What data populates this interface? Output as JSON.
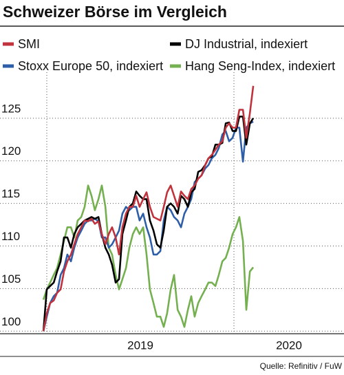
{
  "chart_data": {
    "type": "line",
    "title": "Schweizer Börse im Vergleich",
    "source": "Quelle: Refinitiv / FuW",
    "x": [
      2018.982,
      2019.0,
      2019.018,
      2019.037,
      2019.055,
      2019.074,
      2019.092,
      2019.11,
      2019.129,
      2019.147,
      2019.165,
      2019.184,
      2019.202,
      2019.221,
      2019.239,
      2019.257,
      2019.276,
      2019.294,
      2019.313,
      2019.331,
      2019.349,
      2019.368,
      2019.386,
      2019.404,
      2019.423,
      2019.441,
      2019.46,
      2019.478,
      2019.496,
      2019.515,
      2019.533,
      2019.551,
      2019.57,
      2019.588,
      2019.607,
      2019.625,
      2019.643,
      2019.662,
      2019.68,
      2019.699,
      2019.717,
      2019.735,
      2019.754,
      2019.772,
      2019.79,
      2019.809,
      2019.827,
      2019.846,
      2019.864,
      2019.882,
      2019.901,
      2019.919,
      2019.938,
      2019.956,
      2019.974,
      2019.993,
      2020.011,
      2020.029,
      2020.048,
      2020.066,
      2020.085,
      2020.103
    ],
    "series": [
      {
        "name": "Hang Seng-Index, indexiert",
        "color": "#74b04f",
        "values": [
          103.7,
          104.9,
          105.7,
          106.6,
          107.4,
          109.0,
          110.6,
          112.2,
          112.2,
          111.0,
          113.0,
          113.4,
          114.6,
          117.1,
          115.9,
          114.2,
          115.5,
          117.1,
          114.6,
          109.8,
          109.0,
          106.6,
          104.9,
          106.1,
          107.4,
          109.8,
          111.4,
          112.2,
          111.4,
          112.2,
          109.0,
          104.9,
          103.3,
          101.7,
          101.7,
          100.5,
          102.1,
          104.9,
          106.6,
          102.5,
          101.7,
          100.5,
          102.5,
          104.1,
          101.7,
          103.3,
          104.1,
          104.9,
          105.7,
          105.7,
          105.3,
          106.6,
          108.2,
          108.6,
          109.8,
          111.4,
          112.2,
          113.4,
          110.6,
          102.5,
          107.0,
          107.5
        ]
      },
      {
        "name": "Stoxx Europe 50, indexiert",
        "color": "#2f5ea8",
        "values": [
          100,
          101.7,
          103.3,
          104.1,
          104.5,
          106.6,
          107.4,
          109.0,
          108.2,
          109.8,
          111.0,
          111.8,
          112.6,
          113.0,
          113.0,
          113.2,
          112.9,
          111.0,
          111.0,
          109.8,
          110.2,
          111.0,
          111.8,
          113.8,
          114.6,
          114.2,
          114.6,
          114.6,
          113.0,
          113.8,
          112.2,
          111.0,
          109.0,
          109.0,
          109.4,
          113.0,
          114.6,
          114.2,
          113.4,
          113.0,
          112.2,
          113.8,
          114.6,
          115.5,
          117.5,
          117.9,
          118.3,
          119.1,
          119.5,
          120.3,
          120.7,
          121.5,
          123.1,
          123.5,
          122.3,
          122.7,
          123.9,
          123.9,
          119.9,
          123.9,
          124.4,
          124.6
        ]
      },
      {
        "name": "DJ Industrial, indexiert",
        "color": "#000000",
        "values": [
          100,
          104.9,
          105.3,
          105.7,
          107.0,
          108.2,
          111.0,
          111.0,
          109.8,
          111.4,
          112.2,
          112.6,
          113.0,
          113.2,
          113.4,
          113.2,
          113.4,
          111.4,
          109.8,
          109.0,
          107.8,
          105.7,
          106.1,
          111.4,
          113.0,
          114.6,
          115.0,
          116.4,
          115.9,
          115.5,
          115.5,
          113.0,
          111.8,
          110.2,
          109.8,
          111.8,
          114.6,
          115.0,
          114.6,
          113.8,
          115.9,
          115.5,
          114.6,
          116.3,
          116.7,
          118.7,
          118.9,
          119.5,
          120.3,
          120.5,
          121.9,
          121.9,
          122.1,
          124.4,
          124.5,
          123.5,
          123.5,
          125.2,
          125.2,
          121.9,
          124.4,
          125.0
        ]
      },
      {
        "name": "SMI",
        "color": "#c0323c",
        "values": [
          100,
          102.1,
          103.3,
          103.6,
          104.5,
          104.9,
          107.0,
          108.2,
          109.0,
          110.2,
          111.4,
          112.2,
          113.0,
          112.9,
          113.2,
          112.6,
          112.9,
          111.4,
          110.2,
          111.4,
          112.2,
          111.0,
          109.0,
          112.2,
          113.8,
          114.6,
          114.6,
          115.9,
          114.6,
          115.5,
          116.3,
          114.6,
          113.4,
          113.2,
          113.0,
          114.6,
          116.3,
          117.1,
          115.9,
          114.6,
          116.4,
          115.9,
          115.5,
          116.7,
          117.1,
          117.9,
          118.3,
          119.5,
          120.3,
          120.7,
          121.3,
          121.9,
          122.3,
          123.9,
          124.4,
          123.9,
          123.9,
          126.0,
          126.0,
          122.7,
          125.6,
          128.8
        ]
      }
    ],
    "legend_order": [
      3,
      2,
      1,
      0
    ],
    "xlim": [
      2018.75,
      2020.588
    ],
    "xticks": [
      2019,
      2020
    ],
    "ylim": [
      99.7,
      130.4
    ],
    "yticks": [
      100,
      105,
      110,
      115,
      120,
      125
    ],
    "grid": true
  }
}
